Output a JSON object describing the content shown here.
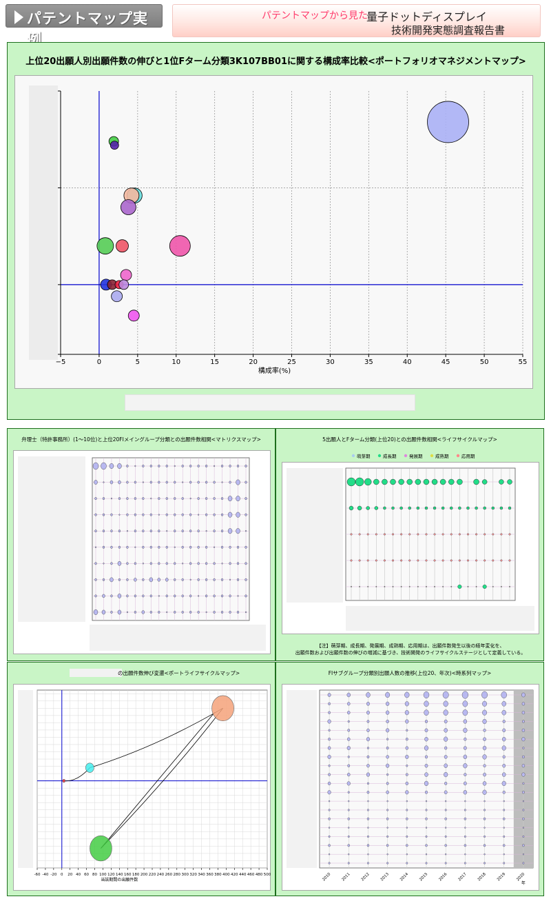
{
  "header": {
    "title": "パテントマップ実例",
    "from_label": "パテントマップから見た",
    "topic": "量子ドットディスプレイ",
    "report": "技術開発実態調査報告書"
  },
  "colors": {
    "panel_bg": "#c9f5c6",
    "panel_border": "#1c6e1c",
    "axis_line": "#0000cc"
  },
  "main": {
    "title": "上位20出願人別出願件数の伸びと1位Fターム分類3K107BB01に関する構成率比較<ポートフォリオマネジメントマップ>"
  },
  "matrix": {
    "title": "弁理士（特許事務所）(1～10位)と上位20FIメイングループ分類との出願件数相関<マトリクスマップ>"
  },
  "lifecycle": {
    "title": "5出願人とFターム分類(上位20)との出願件数相関<ライフサイクルマップ>",
    "legend": [
      "萌芽期",
      "成長期",
      "発展期",
      "成熟期",
      "応用期"
    ],
    "legend_colors": [
      "#aaccee",
      "#22dd88",
      "#dd88dd",
      "#dddd44",
      "#ff8888"
    ],
    "note_line1": "【注】萌芽期、成長期、発展期、成熟期、応用期は、出願件数発生以後の経年変化を、",
    "note_line2": "出願件数および出願件数の伸びの増減に基づき、技術開発のライフサイクルステージとして定義している。"
  },
  "portlife": {
    "title": "の出願件数伸び変遷<ポートライフサイクルマップ>"
  },
  "timeseries": {
    "title": "FIサブグループ分類別出願人数の推移(上位20、年次)<時系列マップ>"
  },
  "chart_data": [
    {
      "id": "portfolio",
      "type": "scatter",
      "xlabel": "構成率(%)",
      "xlim": [
        -5,
        55
      ],
      "xticks": [
        -5,
        0,
        5,
        10,
        15,
        20,
        25,
        30,
        35,
        40,
        45,
        50,
        55
      ],
      "grid": true,
      "points": [
        {
          "x": 45.3,
          "y": 4.2,
          "r": 30,
          "color": "#aab0f5"
        },
        {
          "x": 1.9,
          "y": 3.7,
          "r": 7,
          "color": "#44cc44"
        },
        {
          "x": 2.0,
          "y": 3.6,
          "r": 6,
          "color": "#5522aa"
        },
        {
          "x": 4.6,
          "y": 2.3,
          "r": 11,
          "color": "#66dddd"
        },
        {
          "x": 4.2,
          "y": 2.3,
          "r": 11,
          "color": "#f5b8a0"
        },
        {
          "x": 3.8,
          "y": 2.0,
          "r": 11,
          "color": "#aa66cc"
        },
        {
          "x": 10.5,
          "y": 1.0,
          "r": 15,
          "color": "#ee55aa"
        },
        {
          "x": 0.8,
          "y": 1.0,
          "r": 12,
          "color": "#55cc55"
        },
        {
          "x": 3.0,
          "y": 1.0,
          "r": 9,
          "color": "#ee5566"
        },
        {
          "x": 3.5,
          "y": 0.25,
          "r": 8,
          "color": "#ee66cc"
        },
        {
          "x": 0.9,
          "y": 0.0,
          "r": 8,
          "color": "#2233dd"
        },
        {
          "x": 1.7,
          "y": 0.0,
          "r": 7,
          "color": "#882233"
        },
        {
          "x": 2.6,
          "y": 0.0,
          "r": 6,
          "color": "#ee2244"
        },
        {
          "x": 3.2,
          "y": 0.0,
          "r": 7,
          "color": "#bb88dd"
        },
        {
          "x": 2.3,
          "y": -0.3,
          "r": 8,
          "color": "#aaaaee"
        },
        {
          "x": 4.5,
          "y": -0.8,
          "r": 8,
          "color": "#ee55ee"
        }
      ]
    },
    {
      "id": "portlife",
      "type": "scatter",
      "xlabel": "当該期間の出願件数",
      "xlim": [
        -60,
        500
      ],
      "xticks": [
        -60,
        -40,
        -20,
        0,
        20,
        40,
        60,
        80,
        100,
        120,
        140,
        160,
        180,
        200,
        220,
        240,
        260,
        280,
        300,
        320,
        340,
        360,
        380,
        400,
        420,
        440,
        460,
        480,
        500
      ],
      "points": [
        {
          "x": 5,
          "y": 0,
          "r": 2,
          "color": "#ee3333"
        },
        {
          "x": 68,
          "y": 1.8,
          "r": 6,
          "color": "#44eeee"
        },
        {
          "x": 392,
          "y": 10,
          "r": 16,
          "color": "#f5a27a"
        },
        {
          "x": 95,
          "y": -9.3,
          "r": 16,
          "color": "#44cc44"
        }
      ]
    },
    {
      "id": "timeseries",
      "type": "scatter",
      "x": [
        "2010",
        "2011",
        "2012",
        "2013",
        "2014",
        "2015",
        "2016",
        "2017",
        "2018",
        "2019",
        "2020"
      ],
      "x_suffix": "年"
    }
  ]
}
